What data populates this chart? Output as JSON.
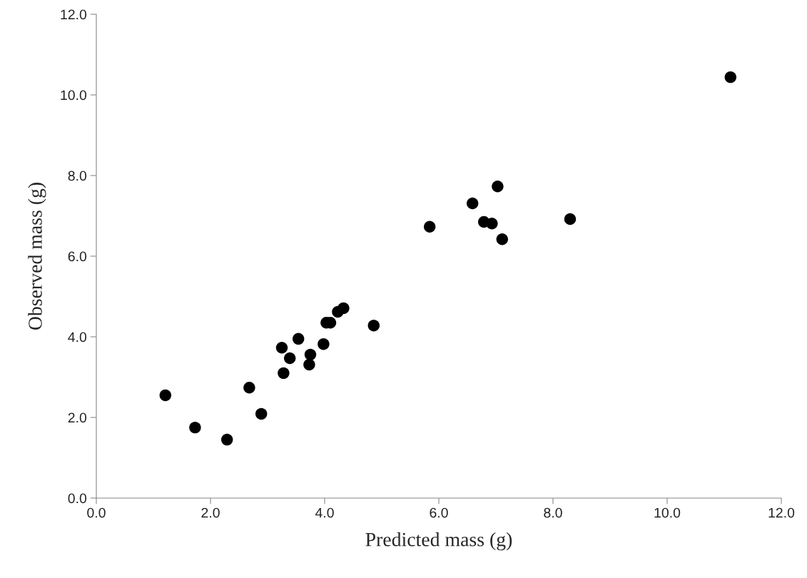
{
  "chart_data": {
    "type": "scatter",
    "xlabel": "Predicted mass (g)",
    "ylabel": "Observed mass (g)",
    "x": [
      1.21,
      1.73,
      2.29,
      2.68,
      2.89,
      3.25,
      3.28,
      3.39,
      3.54,
      3.73,
      3.75,
      3.98,
      4.03,
      4.1,
      4.23,
      4.33,
      4.86,
      5.84,
      6.59,
      6.79,
      6.93,
      7.03,
      7.11,
      8.3,
      11.11
    ],
    "series": [
      {
        "color": "#000000",
        "values": [
          2.55,
          1.75,
          1.45,
          2.74,
          2.09,
          3.73,
          3.1,
          3.47,
          3.95,
          3.31,
          3.56,
          3.82,
          4.35,
          4.35,
          4.62,
          4.71,
          4.28,
          6.73,
          7.31,
          6.85,
          6.81,
          7.73,
          6.42,
          6.92,
          10.44
        ]
      }
    ],
    "xlim": [
      0,
      12
    ],
    "ylim": [
      0,
      12
    ],
    "xticks": [
      {
        "value": 0,
        "label": "0.0"
      },
      {
        "value": 2,
        "label": "2.0"
      },
      {
        "value": 4,
        "label": "4.0"
      },
      {
        "value": 6,
        "label": "6.0"
      },
      {
        "value": 8,
        "label": "8.0"
      },
      {
        "value": 10,
        "label": "10.0"
      },
      {
        "value": 12,
        "label": "12.0"
      }
    ],
    "yticks": [
      {
        "value": 0,
        "label": "0.0"
      },
      {
        "value": 2,
        "label": "2.0"
      },
      {
        "value": 4,
        "label": "4.0"
      },
      {
        "value": 6,
        "label": "6.0"
      },
      {
        "value": 8,
        "label": "8.0"
      },
      {
        "value": 10,
        "label": "10.0"
      },
      {
        "value": 12,
        "label": "12.0"
      }
    ],
    "marker": "circle",
    "grid": false,
    "legend": false
  }
}
